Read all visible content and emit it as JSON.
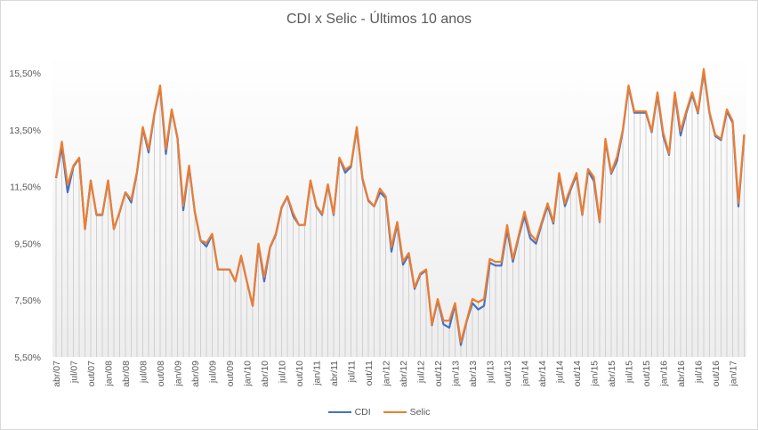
{
  "chart_data": {
    "type": "line",
    "title": "CDI x Selic - Últimos 10 anos",
    "xlabel": "",
    "ylabel": "",
    "ylim": [
      5.5,
      15.5
    ],
    "y_ticks": [
      "5,50%",
      "7,50%",
      "9,50%",
      "11,50%",
      "13,50%",
      "15,50%"
    ],
    "y_tick_values": [
      5.5,
      7.5,
      9.5,
      11.5,
      13.5,
      15.5
    ],
    "x_tick_labels": [
      "abr/07",
      "jul/07",
      "out/07",
      "jan/08",
      "abr/08",
      "jul/08",
      "out/08",
      "jan/09",
      "abr/09",
      "jul/09",
      "out/09",
      "jan/10",
      "abr/10",
      "jul/10",
      "out/10",
      "jan/11",
      "abr/11",
      "jul/11",
      "out/11",
      "jan/12",
      "abr/12",
      "jul/12",
      "out/12",
      "jan/13",
      "abr/13",
      "jul/13",
      "out/13",
      "jan/14",
      "abr/14",
      "jul/14",
      "out/14",
      "jan/15",
      "abr/15",
      "jul/15",
      "out/15",
      "jan/16",
      "abr/16",
      "jul/16",
      "out/16",
      "jan/17"
    ],
    "categories": [
      "abr/07",
      "mai/07",
      "jun/07",
      "jul/07",
      "ago/07",
      "set/07",
      "out/07",
      "nov/07",
      "dez/07",
      "jan/08",
      "fev/08",
      "mar/08",
      "abr/08",
      "mai/08",
      "jun/08",
      "jul/08",
      "ago/08",
      "set/08",
      "out/08",
      "nov/08",
      "dez/08",
      "jan/09",
      "fev/09",
      "mar/09",
      "abr/09",
      "mai/09",
      "jun/09",
      "jul/09",
      "ago/09",
      "set/09",
      "out/09",
      "nov/09",
      "dez/09",
      "jan/10",
      "fev/10",
      "mar/10",
      "abr/10",
      "mai/10",
      "jun/10",
      "jul/10",
      "ago/10",
      "set/10",
      "out/10",
      "nov/10",
      "dez/10",
      "jan/11",
      "fev/11",
      "mar/11",
      "abr/11",
      "mai/11",
      "jun/11",
      "jul/11",
      "ago/11",
      "set/11",
      "out/11",
      "nov/11",
      "dez/11",
      "jan/12",
      "fev/12",
      "mar/12",
      "abr/12",
      "mai/12",
      "jun/12",
      "jul/12",
      "ago/12",
      "set/12",
      "out/12",
      "nov/12",
      "dez/12",
      "jan/13",
      "fev/13",
      "mar/13",
      "abr/13",
      "mai/13",
      "jun/13",
      "jul/13",
      "ago/13",
      "set/13",
      "out/13",
      "nov/13",
      "dez/13",
      "jan/14",
      "fev/14",
      "mar/14",
      "abr/14",
      "mai/14",
      "jun/14",
      "jul/14",
      "ago/14",
      "set/14",
      "out/14",
      "nov/14",
      "dez/14",
      "jan/15",
      "fev/15",
      "mar/15",
      "abr/15",
      "mai/15",
      "jun/15",
      "jul/15",
      "ago/15",
      "set/15",
      "out/15",
      "nov/15",
      "dez/15",
      "jan/16",
      "fev/16",
      "mar/16",
      "abr/16",
      "mai/16",
      "jun/16",
      "jul/16",
      "ago/16",
      "set/16",
      "out/16",
      "nov/16",
      "dez/16",
      "jan/17",
      "fev/17",
      "mar/17"
    ],
    "series": [
      {
        "name": "CDI",
        "color": "#4472C4",
        "values": [
          11.8,
          12.9,
          11.3,
          12.2,
          12.5,
          10.0,
          11.7,
          10.5,
          10.5,
          11.7,
          10.0,
          10.6,
          11.3,
          10.94,
          12.0,
          13.55,
          12.7,
          14.05,
          15.0,
          12.65,
          14.2,
          13.2,
          10.67,
          12.2,
          10.6,
          9.6,
          9.39,
          9.8,
          8.58,
          8.58,
          8.58,
          8.16,
          9.05,
          8.16,
          7.3,
          9.45,
          8.16,
          9.35,
          9.8,
          10.75,
          11.15,
          10.47,
          10.15,
          10.15,
          11.7,
          10.8,
          10.5,
          11.55,
          10.5,
          12.5,
          11.99,
          12.2,
          13.55,
          11.75,
          11.0,
          10.8,
          11.3,
          11.1,
          9.21,
          10.2,
          8.75,
          9.1,
          7.9,
          8.4,
          8.55,
          6.62,
          7.5,
          6.65,
          6.53,
          7.35,
          5.92,
          6.75,
          7.4,
          7.17,
          7.3,
          8.82,
          8.72,
          8.72,
          9.99,
          8.85,
          9.72,
          10.47,
          9.68,
          9.49,
          10.2,
          10.83,
          10.2,
          11.9,
          10.81,
          11.4,
          11.9,
          10.5,
          12.05,
          11.7,
          10.25,
          13.1,
          11.95,
          12.4,
          13.45,
          15.0,
          14.1,
          14.1,
          14.1,
          13.42,
          14.75,
          13.28,
          12.62,
          14.75,
          13.3,
          14.1,
          14.75,
          14.08,
          15.55,
          14.08,
          13.28,
          13.14,
          14.15,
          13.75,
          10.8,
          13.3
        ]
      },
      {
        "name": "Selic",
        "color": "#ED7D31",
        "values": [
          11.82,
          13.08,
          11.56,
          12.24,
          12.52,
          10.0,
          11.72,
          10.52,
          10.52,
          11.72,
          10.0,
          10.62,
          11.3,
          11.04,
          12.03,
          13.6,
          12.81,
          14.07,
          15.06,
          12.81,
          14.22,
          13.23,
          10.83,
          12.24,
          10.62,
          9.6,
          9.52,
          9.84,
          8.58,
          8.58,
          8.58,
          8.16,
          9.07,
          8.16,
          7.3,
          9.49,
          8.32,
          9.37,
          9.84,
          10.78,
          11.16,
          10.57,
          10.15,
          10.15,
          11.72,
          10.83,
          10.54,
          11.58,
          10.54,
          12.52,
          12.1,
          12.24,
          13.6,
          11.79,
          11.04,
          10.81,
          11.43,
          11.16,
          9.37,
          10.26,
          8.86,
          9.16,
          7.95,
          8.45,
          8.58,
          6.65,
          7.54,
          6.78,
          6.78,
          7.4,
          6.02,
          6.78,
          7.54,
          7.43,
          7.54,
          8.95,
          8.85,
          8.85,
          10.15,
          8.95,
          9.78,
          10.62,
          9.84,
          9.6,
          10.26,
          10.91,
          10.26,
          11.98,
          10.91,
          11.46,
          11.98,
          10.52,
          12.12,
          11.84,
          10.28,
          13.18,
          12.0,
          12.55,
          13.49,
          15.06,
          14.15,
          14.15,
          14.15,
          13.46,
          14.82,
          13.39,
          12.66,
          14.82,
          13.46,
          14.17,
          14.82,
          14.12,
          15.64,
          14.12,
          13.32,
          13.18,
          14.22,
          13.81,
          10.93,
          13.34
        ]
      }
    ],
    "drop_lines": true,
    "grid": false,
    "legend_position": "bottom"
  }
}
